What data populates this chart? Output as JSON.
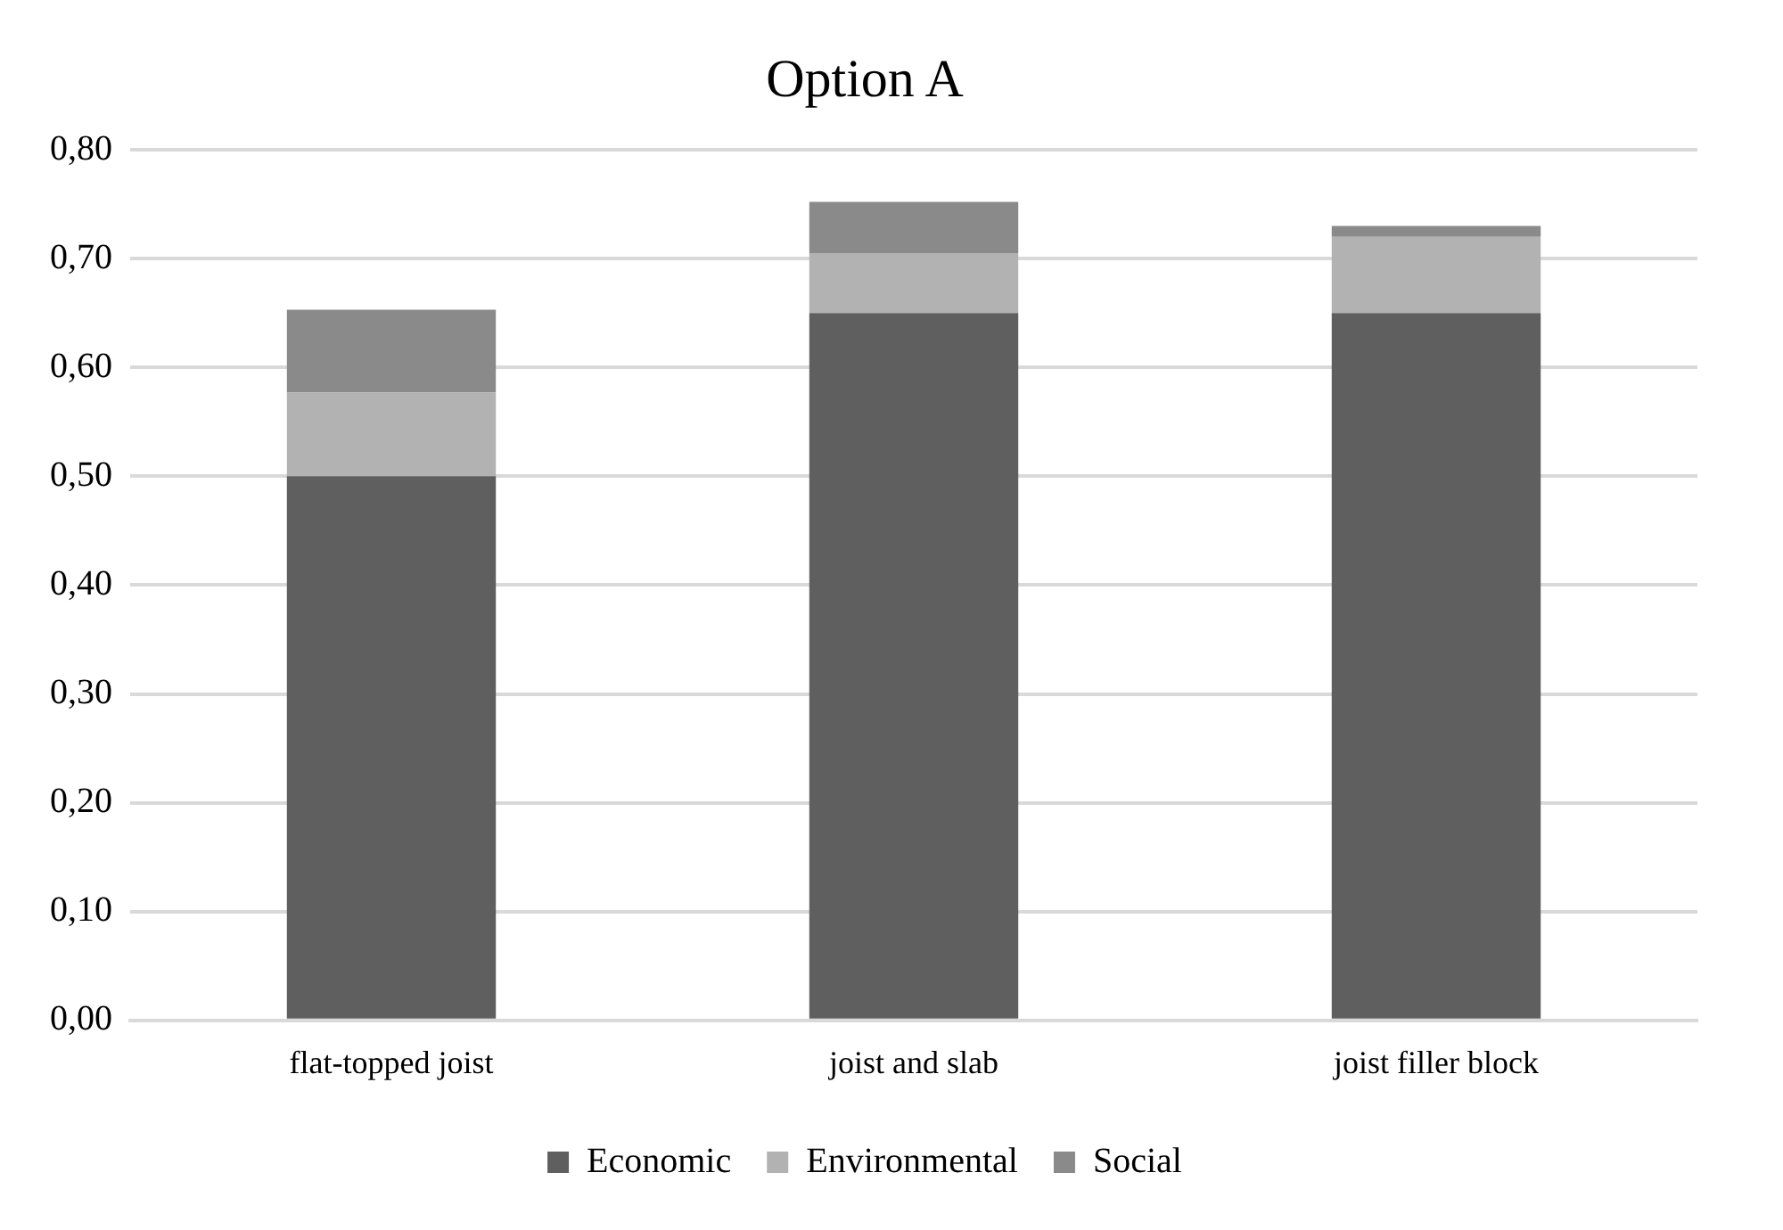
{
  "chart_data": {
    "type": "bar",
    "title": "Option A",
    "stacked": true,
    "categories": [
      "flat-topped joist",
      "joist and slab",
      "joist filler block"
    ],
    "series": [
      {
        "name": "Economic",
        "color": "#5f5f5f",
        "values": [
          0.5,
          0.65,
          0.65
        ]
      },
      {
        "name": "Environmental",
        "color": "#b2b2b2",
        "values": [
          0.077,
          0.055,
          0.07
        ]
      },
      {
        "name": "Social",
        "color": "#8a8a8a",
        "values": [
          0.076,
          0.047,
          0.01
        ]
      }
    ],
    "ylim": [
      0,
      0.8
    ],
    "yticks": [
      {
        "value": 0,
        "label": "0,00"
      },
      {
        "value": 0.1,
        "label": "0,10"
      },
      {
        "value": 0.2,
        "label": "0,20"
      },
      {
        "value": 0.3,
        "label": "0,30"
      },
      {
        "value": 0.4,
        "label": "0,40"
      },
      {
        "value": 0.5,
        "label": "0,50"
      },
      {
        "value": 0.6,
        "label": "0,60"
      },
      {
        "value": 0.7,
        "label": "0,70"
      },
      {
        "value": 0.8,
        "label": "0,80"
      }
    ],
    "grid": "y",
    "legend": "bottom"
  }
}
